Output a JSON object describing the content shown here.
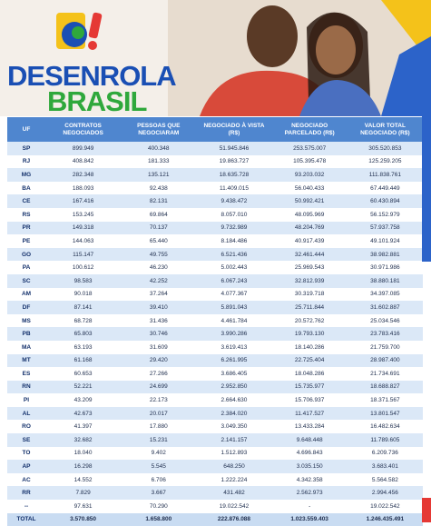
{
  "header": {
    "logo_line1": "DESENROLA",
    "logo_line2": "BRASIL"
  },
  "table": {
    "columns": [
      "UF",
      "CONTRATOS NEGOCIADOS",
      "PESSOAS QUE NEGOCIARAM",
      "NEGOCIADO À VISTA (R$)",
      "NEGOCIADO PARCELADO (R$)",
      "VALOR TOTAL NEGOCIADO (R$)"
    ],
    "rows": [
      [
        "SP",
        "899.949",
        "400.348",
        "51.945.846",
        "253.575.007",
        "305.520.853"
      ],
      [
        "RJ",
        "408.842",
        "181.333",
        "19.863.727",
        "105.395.478",
        "125.259.205"
      ],
      [
        "MG",
        "282.348",
        "135.121",
        "18.635.728",
        "93.203.032",
        "111.838.761"
      ],
      [
        "BA",
        "188.093",
        "92.438",
        "11.409.015",
        "56.040.433",
        "67.449.449"
      ],
      [
        "CE",
        "167.416",
        "82.131",
        "9.438.472",
        "50.992.421",
        "60.430.894"
      ],
      [
        "RS",
        "153.245",
        "69.864",
        "8.057.010",
        "48.095.969",
        "56.152.979"
      ],
      [
        "PR",
        "149.318",
        "70.137",
        "9.732.989",
        "48.204.769",
        "57.937.758"
      ],
      [
        "PE",
        "144.063",
        "65.440",
        "8.184.486",
        "40.917.439",
        "49.101.924"
      ],
      [
        "GO",
        "115.147",
        "49.755",
        "6.521.436",
        "32.461.444",
        "38.982.881"
      ],
      [
        "PA",
        "100.612",
        "46.230",
        "5.002.443",
        "25.969.543",
        "30.971.986"
      ],
      [
        "SC",
        "98.583",
        "42.252",
        "6.067.243",
        "32.812.939",
        "38.880.181"
      ],
      [
        "AM",
        "90.018",
        "37.264",
        "4.077.367",
        "30.319.718",
        "34.397.085"
      ],
      [
        "DF",
        "87.141",
        "39.410",
        "5.891.043",
        "25.711.844",
        "31.602.887"
      ],
      [
        "MS",
        "68.728",
        "31.436",
        "4.461.784",
        "20.572.762",
        "25.034.546"
      ],
      [
        "PB",
        "65.803",
        "30.746",
        "3.990.286",
        "19.793.130",
        "23.783.416"
      ],
      [
        "MA",
        "63.193",
        "31.609",
        "3.619.413",
        "18.140.286",
        "21.759.700"
      ],
      [
        "MT",
        "61.168",
        "29.420",
        "6.261.995",
        "22.725.404",
        "28.987.400"
      ],
      [
        "ES",
        "60.653",
        "27.266",
        "3.686.405",
        "18.048.286",
        "21.734.691"
      ],
      [
        "RN",
        "52.221",
        "24.699",
        "2.952.850",
        "15.735.977",
        "18.688.827"
      ],
      [
        "PI",
        "43.209",
        "22.173",
        "2.664.630",
        "15.706.937",
        "18.371.567"
      ],
      [
        "AL",
        "42.673",
        "20.017",
        "2.384.020",
        "11.417.527",
        "13.801.547"
      ],
      [
        "RO",
        "41.397",
        "17.880",
        "3.049.350",
        "13.433.284",
        "16.482.634"
      ],
      [
        "SE",
        "32.682",
        "15.231",
        "2.141.157",
        "9.648.448",
        "11.789.605"
      ],
      [
        "TO",
        "18.040",
        "9.402",
        "1.512.893",
        "4.696.843",
        "6.209.736"
      ],
      [
        "AP",
        "16.298",
        "5.545",
        "648.250",
        "3.035.150",
        "3.683.401"
      ],
      [
        "AC",
        "14.552",
        "6.706",
        "1.222.224",
        "4.342.358",
        "5.564.582"
      ],
      [
        "RR",
        "7.829",
        "3.667",
        "431.482",
        "2.562.973",
        "2.994.456"
      ],
      [
        "--",
        "97.631",
        "70.290",
        "19.022.542",
        "-",
        "19.022.542"
      ],
      [
        "TOTAL",
        "3.570.850",
        "1.658.800",
        "222.876.088",
        "1.023.559.403",
        "1.246.435.491"
      ]
    ]
  }
}
